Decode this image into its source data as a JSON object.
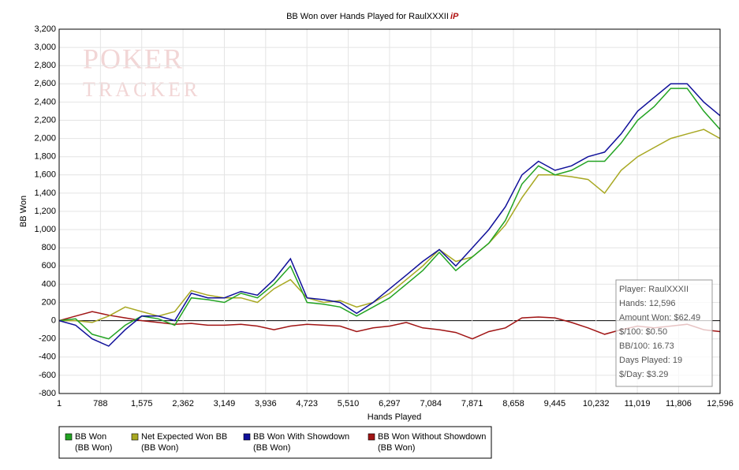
{
  "chart_data": {
    "type": "line",
    "title": "BB Won over Hands Played for RaulXXXII",
    "watermark": [
      "POKER",
      "TRACKER"
    ],
    "x_label": "Hands Played",
    "y_label": "BB Won",
    "x": [
      1,
      315,
      630,
      945,
      1260,
      1575,
      1890,
      2205,
      2520,
      2835,
      3150,
      3465,
      3780,
      4095,
      4410,
      4725,
      5040,
      5355,
      5670,
      5985,
      6300,
      6615,
      6930,
      7245,
      7560,
      7875,
      8190,
      8505,
      8820,
      9135,
      9450,
      9765,
      10080,
      10395,
      10710,
      11025,
      11340,
      11655,
      11970,
      12285,
      12596
    ],
    "series": [
      {
        "name": "BB Won",
        "unit": "(BB Won)",
        "color": "#22a322",
        "values": [
          0,
          20,
          -150,
          -200,
          -50,
          50,
          20,
          -50,
          250,
          230,
          200,
          300,
          250,
          400,
          600,
          200,
          180,
          150,
          50,
          150,
          250,
          400,
          550,
          750,
          550,
          700,
          850,
          1100,
          1500,
          1700,
          1600,
          1650,
          1750,
          1750,
          1950,
          2200,
          2350,
          2550,
          2550,
          2300,
          2100
        ]
      },
      {
        "name": "Net Expected Won BB",
        "unit": "(BB Won)",
        "color": "#a8a822",
        "values": [
          0,
          0,
          -20,
          50,
          150,
          100,
          50,
          100,
          330,
          280,
          250,
          250,
          200,
          350,
          450,
          250,
          200,
          220,
          150,
          200,
          300,
          450,
          600,
          780,
          650,
          700,
          850,
          1050,
          1350,
          1600,
          1600,
          1580,
          1550,
          1400,
          1650,
          1800,
          1900,
          2000,
          2050,
          2100,
          2000
        ]
      },
      {
        "name": "BB Won With Showdown",
        "unit": "(BB Won)",
        "color": "#10109a",
        "values": [
          0,
          -50,
          -200,
          -280,
          -100,
          50,
          50,
          0,
          300,
          250,
          250,
          320,
          280,
          450,
          680,
          250,
          230,
          200,
          80,
          200,
          350,
          500,
          650,
          780,
          600,
          800,
          1000,
          1250,
          1600,
          1750,
          1650,
          1700,
          1800,
          1850,
          2050,
          2300,
          2450,
          2600,
          2600,
          2400,
          2250
        ]
      },
      {
        "name": "BB Won Without Showdown",
        "unit": "(BB Won)",
        "color": "#a01414",
        "values": [
          0,
          50,
          100,
          60,
          30,
          0,
          -20,
          -40,
          -30,
          -50,
          -50,
          -40,
          -60,
          -100,
          -60,
          -40,
          -50,
          -60,
          -120,
          -80,
          -60,
          -20,
          -80,
          -100,
          -130,
          -200,
          -120,
          -80,
          30,
          40,
          30,
          -20,
          -80,
          -150,
          -100,
          -60,
          -80,
          -60,
          -40,
          -100,
          -120
        ]
      }
    ],
    "xlim": [
      1,
      12596
    ],
    "xticks": [
      1,
      788,
      {
        "value": 1575,
        "label": "1,575"
      },
      {
        "value": 2362,
        "label": "2,362"
      },
      {
        "value": 3149,
        "label": "3,149"
      },
      {
        "value": 3936,
        "label": "3,936"
      },
      {
        "value": 4723,
        "label": "4,723"
      },
      {
        "value": 5510,
        "label": "5,510"
      },
      {
        "value": 6297,
        "label": "6,297"
      },
      {
        "value": 7084,
        "label": "7,084"
      },
      {
        "value": 7871,
        "label": "7,871"
      },
      {
        "value": 8658,
        "label": "8,658"
      },
      {
        "value": 9445,
        "label": "9,445"
      },
      {
        "value": 10232,
        "label": "10,232"
      },
      {
        "value": 11019,
        "label": "11,019"
      },
      {
        "value": 11806,
        "label": "11,806"
      },
      {
        "value": 12596,
        "label": "12,596"
      }
    ],
    "ylim": [
      -800,
      3200
    ],
    "yticks": [
      -800,
      -600,
      -400,
      -200,
      0,
      200,
      400,
      600,
      800,
      {
        "value": 1000,
        "label": "1,000"
      },
      {
        "value": 1200,
        "label": "1,200"
      },
      {
        "value": 1400,
        "label": "1,400"
      },
      {
        "value": 1600,
        "label": "1,600"
      },
      {
        "value": 1800,
        "label": "1,800"
      },
      {
        "value": 2000,
        "label": "2,000"
      },
      {
        "value": 2200,
        "label": "2,200"
      },
      {
        "value": 2400,
        "label": "2,400"
      },
      {
        "value": 2600,
        "label": "2,600"
      },
      {
        "value": 2800,
        "label": "2,800"
      },
      {
        "value": 3000,
        "label": "3,000"
      },
      {
        "value": 3200,
        "label": "3,200"
      }
    ],
    "grid": true,
    "stats": [
      "Player: RaulXXXII",
      "Hands: 12,596",
      "Amount Won: $62.49",
      "$/100: $0.50",
      "BB/100: 16.73",
      "Days Played: 19",
      "$/Day: $3.29"
    ]
  }
}
